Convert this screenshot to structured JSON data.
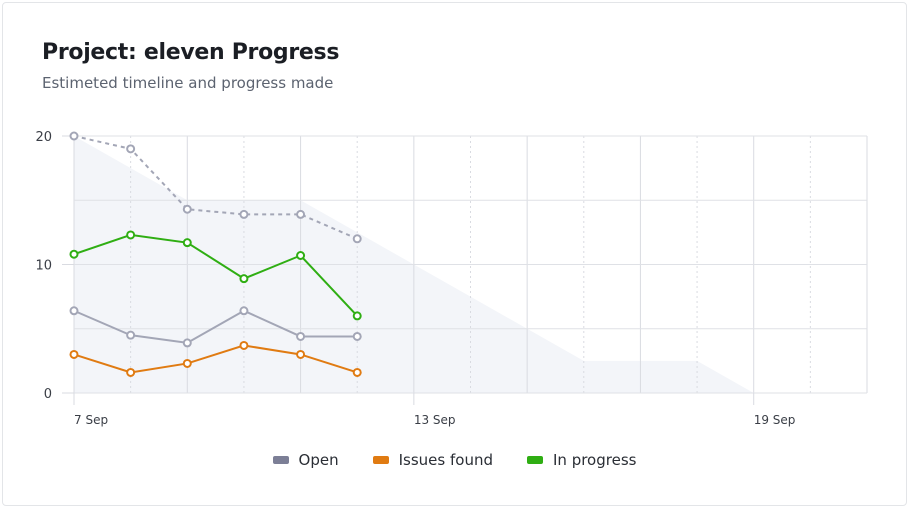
{
  "title": "Project: eleven Progress",
  "subtitle": "Estimeted timeline and progress made",
  "chart_data": {
    "type": "line",
    "x_ticks": [
      "7 Sep",
      "13 Sep",
      "19 Sep"
    ],
    "x_days": [
      7,
      8,
      9,
      10,
      11,
      12
    ],
    "xlim": [
      7,
      21
    ],
    "ylim": [
      0,
      20
    ],
    "y_ticks": [
      "0",
      "10",
      "20"
    ],
    "grid": true,
    "legend_position": "bottom",
    "area": {
      "days": [
        7,
        8,
        9,
        10,
        11,
        12,
        13,
        14,
        15,
        16,
        17,
        18,
        19
      ],
      "values": [
        20,
        17.5,
        15,
        15,
        15,
        12.5,
        10,
        7.5,
        5,
        2.5,
        2.5,
        2.5,
        0
      ],
      "color": "#f3f5f9"
    },
    "estimate": {
      "values": [
        20,
        19,
        14.3,
        13.9,
        13.9,
        12
      ],
      "color": "#a3a6b6",
      "dashed": true
    },
    "series": [
      {
        "name": "Open",
        "values": [
          6.4,
          4.5,
          3.9,
          6.4,
          4.4,
          4.4
        ],
        "color": "#a3a6b6",
        "legend_color": "#7c7f96"
      },
      {
        "name": "Issues found",
        "values": [
          3.0,
          1.6,
          2.3,
          3.7,
          3.0,
          1.6
        ],
        "color": "#e07b12",
        "legend_color": "#e07b12"
      },
      {
        "name": "In progress",
        "values": [
          10.8,
          12.3,
          11.7,
          8.9,
          10.7,
          6.0
        ],
        "color": "#2fae13",
        "legend_color": "#2fae13"
      }
    ]
  }
}
